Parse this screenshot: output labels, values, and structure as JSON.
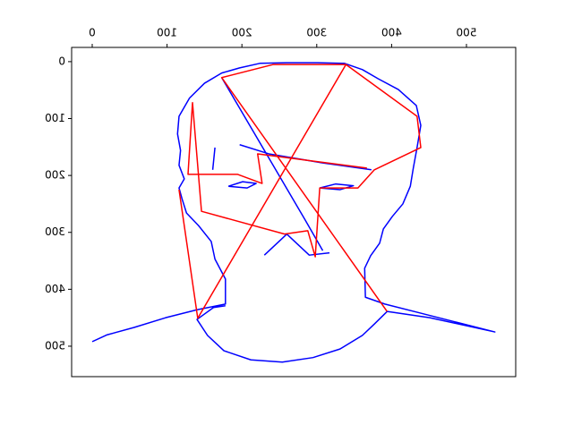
{
  "chart_data": {
    "type": "line",
    "xlim": [
      -27.5,
      565.8
    ],
    "ylim": [
      -25,
      553.5
    ],
    "y_inverted": true,
    "x_axis_position": "top",
    "mirrored_labels": true,
    "xticks": [
      0,
      100,
      200,
      300,
      400,
      500
    ],
    "yticks": [
      0,
      100,
      200,
      300,
      400,
      500
    ],
    "series": [
      {
        "color": "#0000ff",
        "x": [
          0,
          20,
          56,
          98,
          140,
          178,
          178,
          164,
          159,
          142,
          126,
          120,
          116,
          123,
          116,
          118,
          114,
          116,
          130,
          150,
          173,
          197,
          224,
          260,
          301,
          337,
          361,
          382,
          409,
          433,
          439,
          434,
          429,
          425,
          415,
          401,
          389,
          384,
          372,
          364,
          365,
          391,
          439,
          487,
          538,
          451,
          394,
          377,
          361,
          331,
          295,
          254,
          212,
          176,
          154,
          140,
          162,
          178
        ],
        "values": [
          492,
          480,
          467,
          450,
          436,
          426,
          382,
          347,
          316,
          288,
          266,
          241,
          222,
          206,
          182,
          156,
          127,
          96,
          64,
          38,
          20,
          11,
          3,
          2,
          2,
          3,
          14,
          30,
          49,
          77,
          112,
          151,
          187,
          219,
          250,
          272,
          294,
          319,
          341,
          363,
          414,
          426,
          442,
          458,
          475,
          450,
          439,
          461,
          481,
          505,
          520,
          528,
          524,
          508,
          481,
          453,
          432,
          429
        ]
      },
      {
        "color": "#0000ff",
        "x": [
          182,
          201,
          219,
          207,
          182,
          null,
          304,
          325,
          349,
          331,
          304,
          null,
          197,
          236,
          308,
          373,
          null,
          173,
          284,
          308,
          null,
          230,
          260,
          290,
          317,
          null,
          164,
          161
        ],
        "values": [
          219,
          211,
          214,
          222,
          219,
          null,
          222,
          215,
          218,
          225,
          222,
          null,
          146,
          162,
          178,
          190,
          null,
          28,
          277,
          332,
          null,
          340,
          303,
          340,
          336,
          null,
          151,
          190
        ]
      },
      {
        "color": "#ff0000",
        "x": [
          394,
          173,
          242,
          339,
          434,
          439,
          377,
          355,
          304,
          298,
          288,
          257,
          146,
          134,
          128,
          194,
          227,
          221,
          367,
          null,
          116,
          141,
          339
        ],
        "values": [
          439,
          28,
          5,
          5,
          96,
          151,
          190,
          222,
          222,
          343,
          297,
          303,
          263,
          72,
          198,
          198,
          214,
          162,
          187,
          null,
          225,
          451,
          5
        ]
      }
    ]
  }
}
